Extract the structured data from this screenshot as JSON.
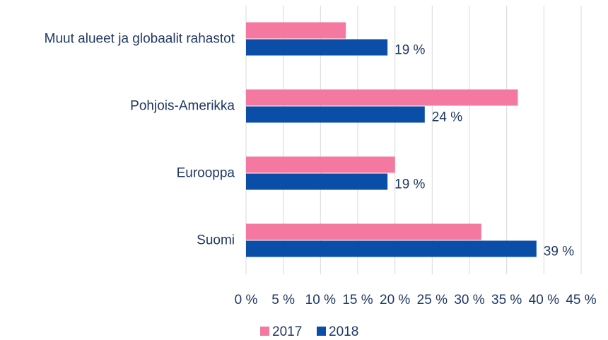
{
  "chart_data": {
    "type": "bar",
    "orientation": "horizontal",
    "categories": [
      "Muut alueet ja globaalit rahastot",
      "Pohjois-Amerikka",
      "Eurooppa",
      "Suomi"
    ],
    "series": [
      {
        "name": "2017",
        "color": "#f478a0",
        "values": [
          13.4,
          36.5,
          20,
          31.6
        ]
      },
      {
        "name": "2018",
        "color": "#0b4ea8",
        "values": [
          19,
          24,
          19,
          39
        ],
        "value_labels": [
          "19 %",
          "24 %",
          "19 %",
          "39 %"
        ]
      }
    ],
    "xlim": [
      0,
      45
    ],
    "xticks": [
      {
        "value": 0,
        "label": "0 %"
      },
      {
        "value": 5,
        "label": "5 %"
      },
      {
        "value": 10,
        "label": "10 %"
      },
      {
        "value": 15,
        "label": "15 %"
      },
      {
        "value": 20,
        "label": "20 %"
      },
      {
        "value": 25,
        "label": "25 %"
      },
      {
        "value": 30,
        "label": "30 %"
      },
      {
        "value": 35,
        "label": "35 %"
      },
      {
        "value": 40,
        "label": "40 %"
      },
      {
        "value": 45,
        "label": "45 %"
      }
    ],
    "grid": true,
    "legend": "bottom"
  }
}
